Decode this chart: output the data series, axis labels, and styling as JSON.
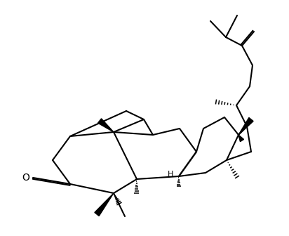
{
  "background": "#ffffff",
  "line_color": "#000000",
  "lw": 1.5,
  "figsize": [
    4.12,
    3.36
  ],
  "dpi": 100
}
